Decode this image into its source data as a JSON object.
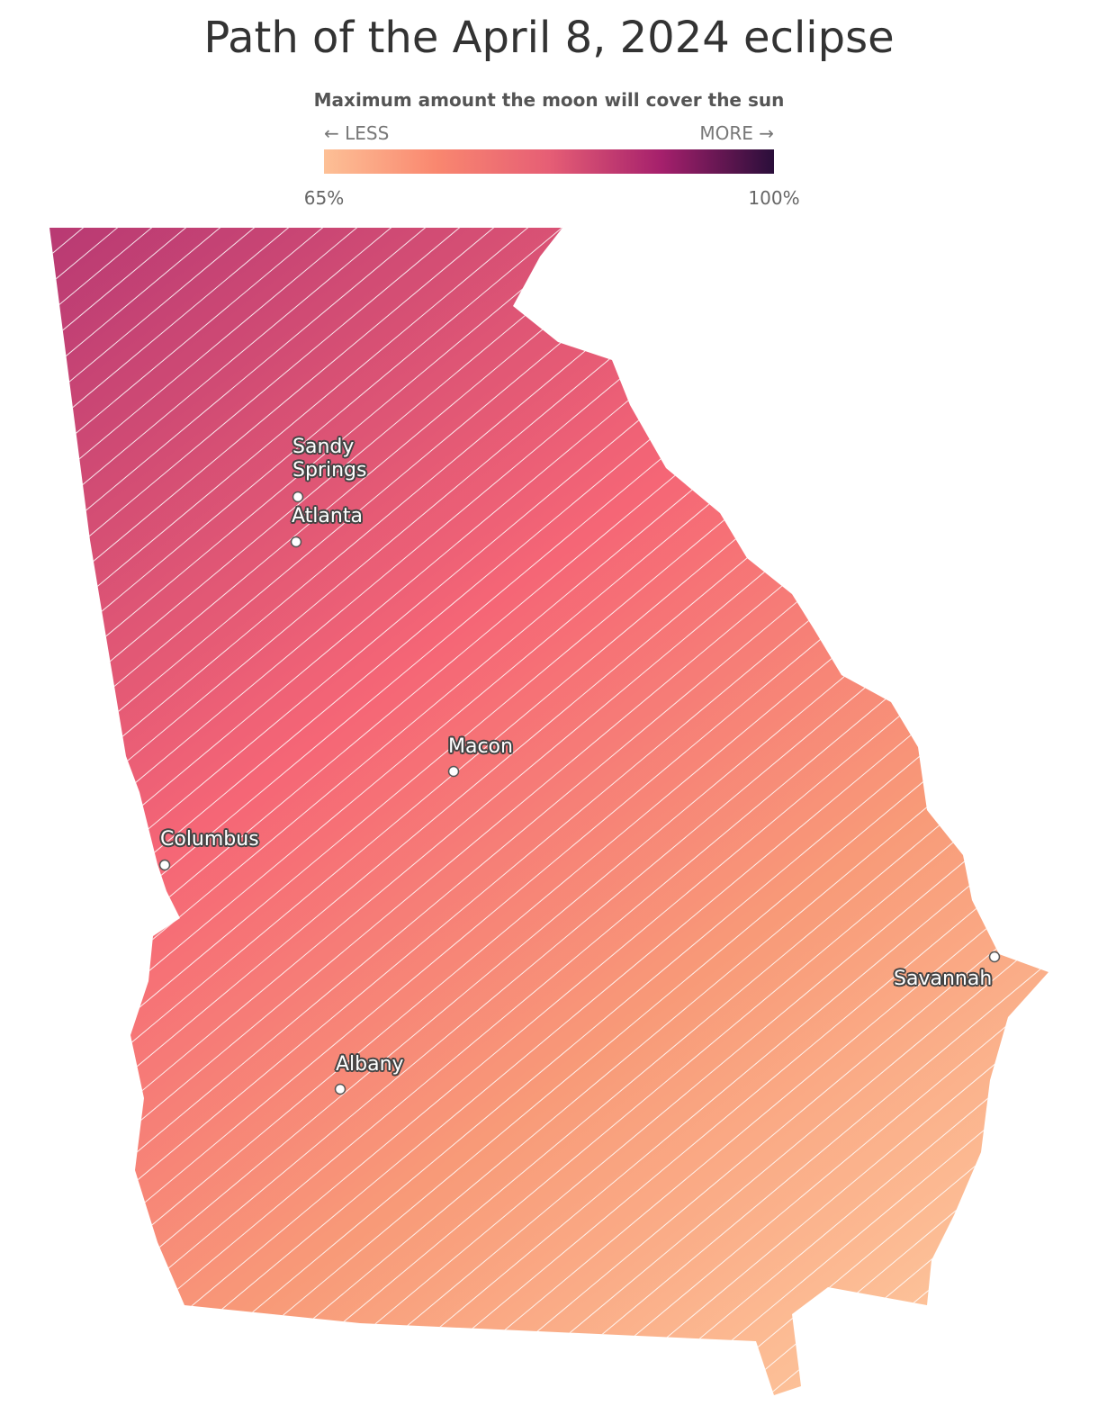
{
  "title": "Path of the April 8, 2024 eclipse",
  "legend": {
    "title": "Maximum amount the moon will cover the sun",
    "less": "← LESS",
    "more": "MORE →",
    "colors": [
      "#fdc096",
      "#f9876f",
      "#e65e75",
      "#a5206c",
      "#2a0e3a"
    ],
    "ticks": [
      {
        "value": 65,
        "label": "65%"
      },
      {
        "value": 100,
        "label": "100%"
      }
    ]
  },
  "cities": [
    {
      "name": "Sandy Springs"
    },
    {
      "name": "Atlanta"
    },
    {
      "name": "Macon"
    },
    {
      "name": "Columbus"
    },
    {
      "name": "Savannah"
    },
    {
      "name": "Albany"
    }
  ]
}
